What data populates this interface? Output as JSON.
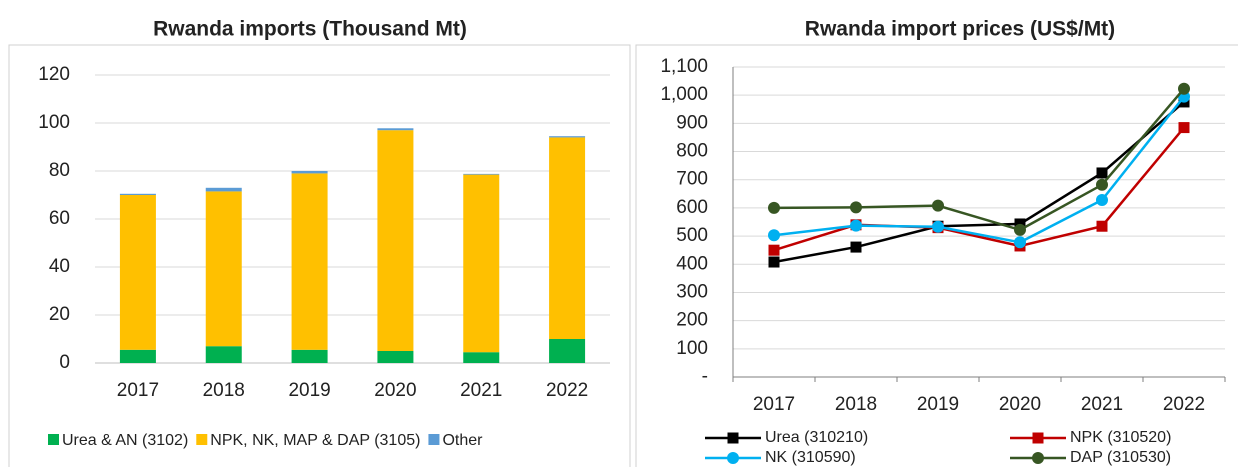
{
  "chart_data": [
    {
      "type": "stacked-bar",
      "title": "Rwanda imports (Thousand Mt)",
      "categories": [
        "2017",
        "2018",
        "2019",
        "2020",
        "2021",
        "2022"
      ],
      "series": [
        {
          "name": "Urea  & AN (3102)",
          "color": "#00b050",
          "values": [
            5.5,
            7,
            5.5,
            5,
            4.5,
            10
          ]
        },
        {
          "name": "NPK, NK, MAP & DAP (3105)",
          "color": "#ffc000",
          "values": [
            64.5,
            64.5,
            73.5,
            92,
            74,
            84
          ]
        },
        {
          "name": "Other",
          "color": "#5b9bd5",
          "values": [
            0.5,
            1.5,
            1,
            0.8,
            0.3,
            0.5
          ]
        }
      ],
      "ylim": [
        0,
        120
      ],
      "yticks": [
        0,
        20,
        40,
        60,
        80,
        100,
        120
      ],
      "grid": true
    },
    {
      "type": "line",
      "title": "Rwanda import prices (US$/Mt)",
      "categories": [
        "2017",
        "2018",
        "2019",
        "2020",
        "2021",
        "2022"
      ],
      "series": [
        {
          "name": "Urea (310210)",
          "color": "#000000",
          "marker": "square",
          "values": [
            408,
            461,
            535,
            543,
            724,
            976
          ]
        },
        {
          "name": "NPK (310520)",
          "color": "#c00000",
          "marker": "square",
          "values": [
            450,
            540,
            530,
            465,
            535,
            885
          ]
        },
        {
          "name": "NK (310590)",
          "color": "#00b0f0",
          "marker": "circle",
          "values": [
            503,
            537,
            533,
            478,
            628,
            995
          ]
        },
        {
          "name": "DAP (310530)",
          "color": "#375623",
          "marker": "circle",
          "values": [
            600,
            602,
            608,
            522,
            682,
            1023
          ]
        }
      ],
      "ylim": [
        0,
        1100
      ],
      "yticks": [
        {
          "value": 0,
          "label": "-"
        },
        100,
        200,
        300,
        400,
        500,
        600,
        700,
        800,
        900,
        {
          "value": 1000,
          "label": "1,000"
        },
        {
          "value": 1100,
          "label": "1,100"
        }
      ],
      "grid": true
    }
  ]
}
